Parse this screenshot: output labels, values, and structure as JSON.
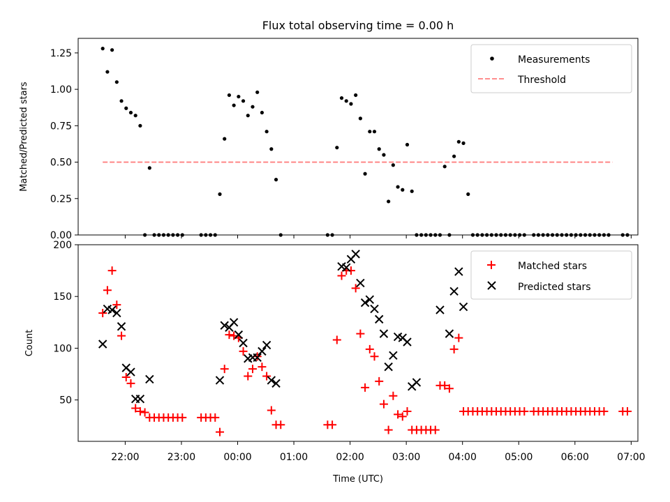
{
  "chart_data": [
    {
      "type": "scatter",
      "title": "Flux total observing time = 0.00 h",
      "ylabel": "Matched/Predicted stars",
      "xlabel": "",
      "ylim": [
        0,
        1.35
      ],
      "yticks": [
        "0.00",
        "0.25",
        "0.50",
        "0.75",
        "1.00",
        "1.25"
      ],
      "legend": {
        "placement": "top-right",
        "entries": [
          "Measurements",
          "Threshold"
        ]
      },
      "grid": false,
      "threshold": {
        "name": "Threshold",
        "value": 0.5,
        "x_start": "21:36",
        "x_end": "06:40",
        "color": "#ff7f7f"
      },
      "series": [
        {
          "name": "Measurements",
          "color": "#000000",
          "points": [
            [
              "21:36",
              1.28
            ],
            [
              "21:41",
              1.12
            ],
            [
              "21:46",
              1.27
            ],
            [
              "21:51",
              1.05
            ],
            [
              "21:56",
              0.92
            ],
            [
              "22:01",
              0.87
            ],
            [
              "22:06",
              0.84
            ],
            [
              "22:11",
              0.82
            ],
            [
              "22:16",
              0.75
            ],
            [
              "22:21",
              0.0
            ],
            [
              "22:26",
              0.46
            ],
            [
              "22:31",
              0.0
            ],
            [
              "22:36",
              0.0
            ],
            [
              "22:41",
              0.0
            ],
            [
              "22:46",
              0.0
            ],
            [
              "22:51",
              0.0
            ],
            [
              "22:56",
              0.0
            ],
            [
              "23:01",
              0.0
            ],
            [
              "23:21",
              0.0
            ],
            [
              "23:26",
              0.0
            ],
            [
              "23:31",
              0.0
            ],
            [
              "23:36",
              0.0
            ],
            [
              "23:41",
              0.28
            ],
            [
              "23:46",
              0.66
            ],
            [
              "23:51",
              0.96
            ],
            [
              "23:56",
              0.89
            ],
            [
              "00:01",
              0.95
            ],
            [
              "00:06",
              0.92
            ],
            [
              "00:11",
              0.82
            ],
            [
              "00:16",
              0.88
            ],
            [
              "00:21",
              0.98
            ],
            [
              "00:26",
              0.84
            ],
            [
              "00:31",
              0.71
            ],
            [
              "00:36",
              0.59
            ],
            [
              "00:41",
              0.38
            ],
            [
              "00:46",
              0.0
            ],
            [
              "01:36",
              0.0
            ],
            [
              "01:41",
              0.0
            ],
            [
              "01:46",
              0.6
            ],
            [
              "01:51",
              0.94
            ],
            [
              "01:56",
              0.92
            ],
            [
              "02:01",
              0.9
            ],
            [
              "02:06",
              0.96
            ],
            [
              "02:11",
              0.8
            ],
            [
              "02:16",
              0.42
            ],
            [
              "02:21",
              0.71
            ],
            [
              "02:26",
              0.71
            ],
            [
              "02:31",
              0.59
            ],
            [
              "02:36",
              0.55
            ],
            [
              "02:41",
              0.23
            ],
            [
              "02:46",
              0.48
            ],
            [
              "02:51",
              0.33
            ],
            [
              "02:56",
              0.31
            ],
            [
              "03:01",
              0.62
            ],
            [
              "03:06",
              0.3
            ],
            [
              "03:11",
              0.0
            ],
            [
              "03:16",
              0.0
            ],
            [
              "03:21",
              0.0
            ],
            [
              "03:26",
              0.0
            ],
            [
              "03:31",
              0.0
            ],
            [
              "03:36",
              0.0
            ],
            [
              "03:41",
              0.47
            ],
            [
              "03:46",
              0.0
            ],
            [
              "03:51",
              0.54
            ],
            [
              "03:56",
              0.64
            ],
            [
              "04:01",
              0.63
            ],
            [
              "04:06",
              0.28
            ],
            [
              "04:11",
              0.0
            ],
            [
              "04:16",
              0.0
            ],
            [
              "04:21",
              0.0
            ],
            [
              "04:26",
              0.0
            ],
            [
              "04:31",
              0.0
            ],
            [
              "04:36",
              0.0
            ],
            [
              "04:41",
              0.0
            ],
            [
              "04:46",
              0.0
            ],
            [
              "04:51",
              0.0
            ],
            [
              "04:56",
              0.0
            ],
            [
              "05:01",
              0.0
            ],
            [
              "05:06",
              0.0
            ],
            [
              "05:16",
              0.0
            ],
            [
              "05:21",
              0.0
            ],
            [
              "05:26",
              0.0
            ],
            [
              "05:31",
              0.0
            ],
            [
              "05:36",
              0.0
            ],
            [
              "05:41",
              0.0
            ],
            [
              "05:46",
              0.0
            ],
            [
              "05:51",
              0.0
            ],
            [
              "05:56",
              0.0
            ],
            [
              "06:01",
              0.0
            ],
            [
              "06:06",
              0.0
            ],
            [
              "06:11",
              0.0
            ],
            [
              "06:16",
              0.0
            ],
            [
              "06:21",
              0.0
            ],
            [
              "06:26",
              0.0
            ],
            [
              "06:31",
              0.0
            ],
            [
              "06:36",
              0.0
            ],
            [
              "06:51",
              0.0
            ],
            [
              "06:56",
              0.0
            ]
          ]
        }
      ]
    },
    {
      "type": "scatter",
      "title": "",
      "ylabel": "Count",
      "xlabel": "Time (UTC)",
      "ylim": [
        10,
        200
      ],
      "yticks": [
        "50",
        "100",
        "150",
        "200"
      ],
      "xticks": [
        "22:00",
        "23:00",
        "00:00",
        "01:00",
        "02:00",
        "03:00",
        "04:00",
        "05:00",
        "06:00",
        "07:00"
      ],
      "legend": {
        "placement": "top-right",
        "entries": [
          "Matched stars",
          "Predicted stars"
        ]
      },
      "grid": false,
      "series": [
        {
          "name": "Matched stars",
          "marker": "+",
          "color": "#ff0000",
          "points": [
            [
              "21:36",
              134
            ],
            [
              "21:41",
              156
            ],
            [
              "21:46",
              175
            ],
            [
              "21:51",
              142
            ],
            [
              "21:56",
              112
            ],
            [
              "22:01",
              72
            ],
            [
              "22:06",
              66
            ],
            [
              "22:11",
              42
            ],
            [
              "22:16",
              39
            ],
            [
              "22:21",
              38
            ],
            [
              "22:26",
              33
            ],
            [
              "22:31",
              33
            ],
            [
              "22:36",
              33
            ],
            [
              "22:41",
              33
            ],
            [
              "22:46",
              33
            ],
            [
              "22:51",
              33
            ],
            [
              "22:56",
              33
            ],
            [
              "23:01",
              33
            ],
            [
              "23:21",
              33
            ],
            [
              "23:26",
              33
            ],
            [
              "23:31",
              33
            ],
            [
              "23:36",
              33
            ],
            [
              "23:41",
              19
            ],
            [
              "23:46",
              80
            ],
            [
              "23:51",
              113
            ],
            [
              "23:56",
              112
            ],
            [
              "00:01",
              110
            ],
            [
              "00:06",
              97
            ],
            [
              "00:11",
              73
            ],
            [
              "00:16",
              80
            ],
            [
              "00:21",
              92
            ],
            [
              "00:26",
              82
            ],
            [
              "00:31",
              73
            ],
            [
              "00:36",
              40
            ],
            [
              "00:41",
              26
            ],
            [
              "00:46",
              26
            ],
            [
              "01:36",
              26
            ],
            [
              "01:41",
              26
            ],
            [
              "01:46",
              108
            ],
            [
              "01:51",
              170
            ],
            [
              "01:56",
              175
            ],
            [
              "02:01",
              175
            ],
            [
              "02:06",
              158
            ],
            [
              "02:11",
              114
            ],
            [
              "02:16",
              62
            ],
            [
              "02:21",
              99
            ],
            [
              "02:26",
              92
            ],
            [
              "02:31",
              68
            ],
            [
              "02:36",
              46
            ],
            [
              "02:41",
              21
            ],
            [
              "02:46",
              54
            ],
            [
              "02:51",
              36
            ],
            [
              "02:56",
              34
            ],
            [
              "03:01",
              39
            ],
            [
              "03:06",
              21
            ],
            [
              "03:11",
              21
            ],
            [
              "03:16",
              21
            ],
            [
              "03:21",
              21
            ],
            [
              "03:26",
              21
            ],
            [
              "03:31",
              21
            ],
            [
              "03:36",
              64
            ],
            [
              "03:41",
              64
            ],
            [
              "03:46",
              61
            ],
            [
              "03:51",
              99
            ],
            [
              "03:56",
              110
            ],
            [
              "04:01",
              39
            ],
            [
              "04:06",
              39
            ],
            [
              "04:11",
              39
            ],
            [
              "04:16",
              39
            ],
            [
              "04:21",
              39
            ],
            [
              "04:26",
              39
            ],
            [
              "04:31",
              39
            ],
            [
              "04:36",
              39
            ],
            [
              "04:41",
              39
            ],
            [
              "04:46",
              39
            ],
            [
              "04:51",
              39
            ],
            [
              "04:56",
              39
            ],
            [
              "05:01",
              39
            ],
            [
              "05:06",
              39
            ],
            [
              "05:16",
              39
            ],
            [
              "05:21",
              39
            ],
            [
              "05:26",
              39
            ],
            [
              "05:31",
              39
            ],
            [
              "05:36",
              39
            ],
            [
              "05:41",
              39
            ],
            [
              "05:46",
              39
            ],
            [
              "05:51",
              39
            ],
            [
              "05:56",
              39
            ],
            [
              "06:01",
              39
            ],
            [
              "06:06",
              39
            ],
            [
              "06:11",
              39
            ],
            [
              "06:16",
              39
            ],
            [
              "06:21",
              39
            ],
            [
              "06:26",
              39
            ],
            [
              "06:31",
              39
            ],
            [
              "06:51",
              39
            ],
            [
              "06:56",
              39
            ]
          ]
        },
        {
          "name": "Predicted stars",
          "marker": "x",
          "color": "#000000",
          "points": [
            [
              "21:36",
              104
            ],
            [
              "21:41",
              138
            ],
            [
              "21:46",
              137
            ],
            [
              "21:51",
              134
            ],
            [
              "21:56",
              121
            ],
            [
              "22:01",
              81
            ],
            [
              "22:06",
              77
            ],
            [
              "22:11",
              51
            ],
            [
              "22:16",
              51
            ],
            [
              "22:26",
              70
            ],
            [
              "23:41",
              69
            ],
            [
              "23:46",
              122
            ],
            [
              "23:51",
              120
            ],
            [
              "23:56",
              125
            ],
            [
              "00:01",
              113
            ],
            [
              "00:06",
              105
            ],
            [
              "00:11",
              90
            ],
            [
              "00:16",
              91
            ],
            [
              "00:21",
              91
            ],
            [
              "00:26",
              97
            ],
            [
              "00:31",
              103
            ],
            [
              "00:36",
              69
            ],
            [
              "00:41",
              66
            ],
            [
              "01:51",
              179
            ],
            [
              "01:56",
              178
            ],
            [
              "02:01",
              186
            ],
            [
              "02:06",
              191
            ],
            [
              "02:11",
              163
            ],
            [
              "02:16",
              144
            ],
            [
              "02:21",
              147
            ],
            [
              "02:26",
              138
            ],
            [
              "02:31",
              128
            ],
            [
              "02:36",
              114
            ],
            [
              "02:41",
              82
            ],
            [
              "02:46",
              93
            ],
            [
              "02:51",
              111
            ],
            [
              "02:56",
              110
            ],
            [
              "03:01",
              106
            ],
            [
              "03:06",
              63
            ],
            [
              "03:11",
              67
            ],
            [
              "03:36",
              137
            ],
            [
              "03:46",
              114
            ],
            [
              "03:51",
              155
            ],
            [
              "03:56",
              174
            ],
            [
              "04:01",
              140
            ]
          ]
        }
      ]
    }
  ]
}
